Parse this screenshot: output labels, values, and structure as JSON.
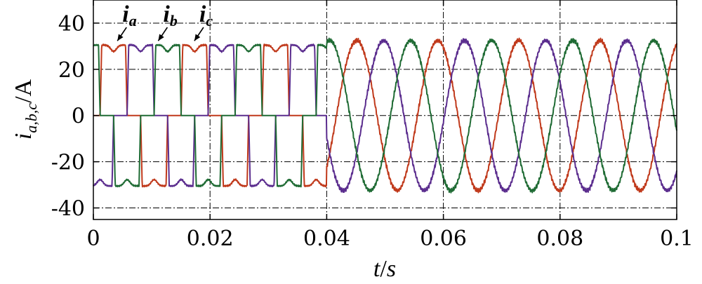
{
  "chart_data": {
    "type": "line",
    "xlabel": {
      "main": "t",
      "sep": "/",
      "unit": "s"
    },
    "ylabel": {
      "main": "i",
      "sub": "a,b,c",
      "unit": "/A"
    },
    "xlim": [
      0,
      0.1
    ],
    "ylim": [
      -45,
      50
    ],
    "xticks": [
      0,
      0.02,
      0.04,
      0.06,
      0.08,
      0.1
    ],
    "xtick_labels": [
      "0",
      "0.02",
      "0.04",
      "0.06",
      "0.08",
      "0.1"
    ],
    "yticks": [
      -40,
      -20,
      0,
      20,
      40
    ],
    "ytick_labels": [
      "-40",
      "-20",
      "0",
      "20",
      "40"
    ],
    "grid": true,
    "transition_time": 0.04,
    "fundamental_frequency_hz": 72,
    "series": [
      {
        "name": "a",
        "color": "#c0391b",
        "phase_deg": 0,
        "pre_amplitude": 30.5,
        "post_amplitude": 32.5
      },
      {
        "name": "b",
        "color": "#5b2d8e",
        "phase_deg": -120,
        "pre_amplitude": 30.5,
        "post_amplitude": 32.5
      },
      {
        "name": "c",
        "color": "#1f6b34",
        "phase_deg": 120,
        "pre_amplitude": 30.5,
        "post_amplitude": 32.5
      }
    ],
    "annotations": [
      {
        "main": "i",
        "sub": "a",
        "series": "a",
        "target": [
          0.004,
          30.5
        ]
      },
      {
        "main": "i",
        "sub": "b",
        "series": "b",
        "target": [
          0.011,
          30.5
        ]
      },
      {
        "main": "i",
        "sub": "c",
        "series": "c",
        "target": [
          0.0172,
          30.5
        ]
      }
    ]
  }
}
